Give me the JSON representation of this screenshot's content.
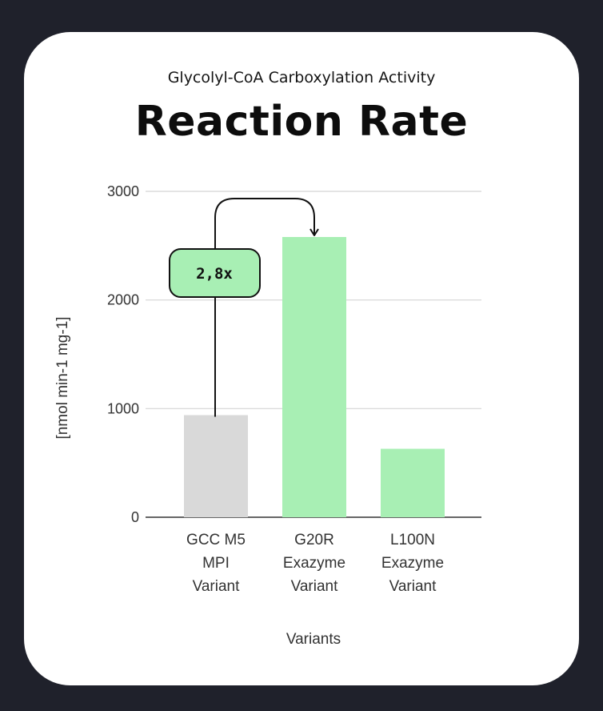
{
  "subtitle": "Glycolyl-CoA Carboxylation Activity",
  "title": "Reaction Rate",
  "colors": {
    "background": "#1f212b",
    "card": "#ffffff",
    "bar_reference": "#d9d9d9",
    "bar_variant": "#a8efb4",
    "grid": "#d4d4d4",
    "annotation_fill": "#a8efb4"
  },
  "chart_data": {
    "type": "bar",
    "title": "Reaction Rate",
    "subtitle": "Glycolyl-CoA Carboxylation Activity",
    "xlabel": "Variants",
    "ylabel": "[nmol min-1 mg-1]",
    "ylim": [
      0,
      3000
    ],
    "yticks": [
      "0",
      "1000",
      "2000",
      "3000"
    ],
    "grid": true,
    "categories": [
      [
        "GCC M5",
        "MPI",
        "Variant"
      ],
      [
        "G20R",
        "Exazyme",
        "Variant"
      ],
      [
        "L100N",
        "Exazyme",
        "Variant"
      ]
    ],
    "values": [
      940,
      2580,
      630
    ],
    "bar_colors": [
      "#d9d9d9",
      "#a8efb4",
      "#a8efb4"
    ],
    "annotations": [
      {
        "text": "2,8x",
        "from_category": 0,
        "to_category": 1
      }
    ]
  }
}
